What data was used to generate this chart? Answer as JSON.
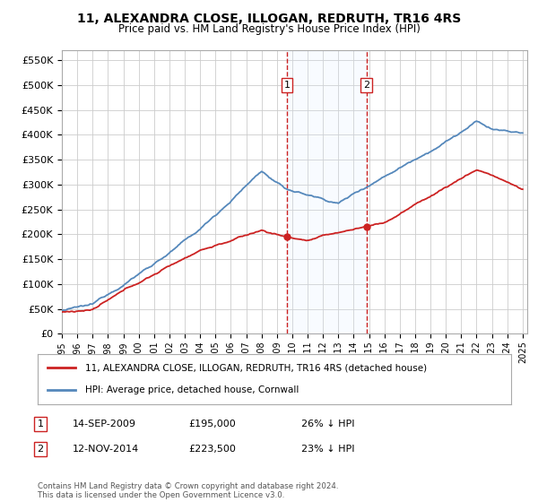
{
  "title": "11, ALEXANDRA CLOSE, ILLOGAN, REDRUTH, TR16 4RS",
  "subtitle": "Price paid vs. HM Land Registry's House Price Index (HPI)",
  "ylim": [
    0,
    570000
  ],
  "yticks": [
    0,
    50000,
    100000,
    150000,
    200000,
    250000,
    300000,
    350000,
    400000,
    450000,
    500000,
    550000
  ],
  "ytick_labels": [
    "£0",
    "£50K",
    "£100K",
    "£150K",
    "£200K",
    "£250K",
    "£300K",
    "£350K",
    "£400K",
    "£450K",
    "£500K",
    "£550K"
  ],
  "hpi_color": "#5588bb",
  "price_color": "#cc2222",
  "marker1_price": 195000,
  "marker2_price": 223500,
  "marker1_date": "14-SEP-2009",
  "marker2_date": "12-NOV-2014",
  "marker1_pct": "26% ↓ HPI",
  "marker2_pct": "23% ↓ HPI",
  "legend_label1": "11, ALEXANDRA CLOSE, ILLOGAN, REDRUTH, TR16 4RS (detached house)",
  "legend_label2": "HPI: Average price, detached house, Cornwall",
  "footnote": "Contains HM Land Registry data © Crown copyright and database right 2024.\nThis data is licensed under the Open Government Licence v3.0.",
  "background_color": "#ffffff",
  "grid_color": "#cccccc",
  "shade_color": "#ddeeff"
}
